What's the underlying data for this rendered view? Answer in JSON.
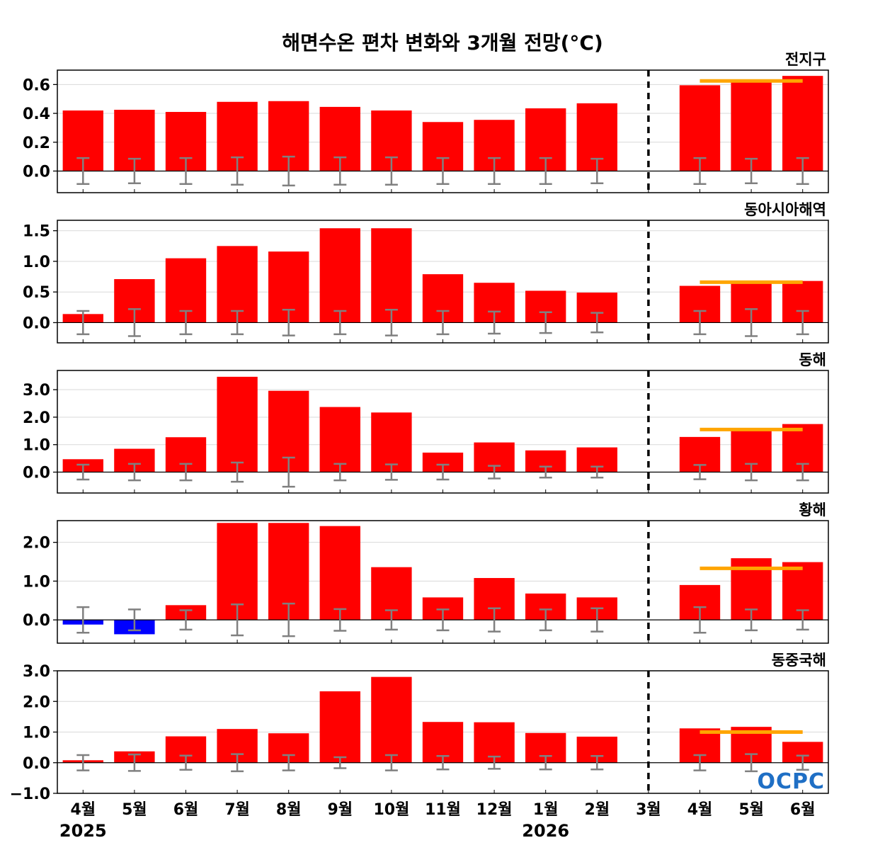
{
  "title": "해면수온 편차 변화와 3개월 전망(°C)",
  "logo_text": "OCPC",
  "colors": {
    "positive_bar": "#ff0000",
    "negative_bar": "#0000ff",
    "forecast_line": "#ffa500",
    "error_bar": "#808080",
    "grid": "#d9d9d9",
    "logo": "#1f6fc5"
  },
  "x_tick_labels": [
    "4월",
    "5월",
    "6월",
    "7월",
    "8월",
    "9월",
    "10월",
    "11월",
    "12월",
    "1월",
    "2월",
    "3월",
    "4월",
    "5월",
    "6월"
  ],
  "year_labels": [
    {
      "label": "2025",
      "category_index": 0
    },
    {
      "label": "2026",
      "category_index": 9
    }
  ],
  "divider_category_index": 11,
  "chart_data": [
    {
      "type": "bar",
      "title": "전지구",
      "categories": [
        "4월",
        "5월",
        "6월",
        "7월",
        "8월",
        "9월",
        "10월",
        "11월",
        "12월",
        "1월",
        "2월",
        "3월",
        "4월",
        "5월",
        "6월"
      ],
      "values": [
        0.42,
        0.425,
        0.41,
        0.48,
        0.485,
        0.445,
        0.42,
        0.34,
        0.355,
        0.435,
        0.47,
        0.0,
        0.595,
        0.615,
        0.66
      ],
      "error_bars": [
        0.09,
        0.085,
        0.09,
        0.095,
        0.1,
        0.095,
        0.095,
        0.09,
        0.09,
        0.09,
        0.085,
        null,
        0.09,
        0.085,
        0.09
      ],
      "forecast_mean": {
        "value": 0.625,
        "from_category_index": 12,
        "to_category_index": 14
      },
      "ylim": [
        -0.15,
        0.7
      ],
      "yticks": [
        0.0,
        0.2,
        0.4,
        0.6
      ],
      "ytick_labels": [
        "0.0",
        "0.2",
        "0.4",
        "0.6"
      ],
      "grid": true
    },
    {
      "type": "bar",
      "title": "동아시아해역",
      "categories": [
        "4월",
        "5월",
        "6월",
        "7월",
        "8월",
        "9월",
        "10월",
        "11월",
        "12월",
        "1월",
        "2월",
        "3월",
        "4월",
        "5월",
        "6월"
      ],
      "values": [
        0.14,
        0.71,
        1.05,
        1.25,
        1.16,
        1.54,
        1.54,
        0.79,
        0.65,
        0.52,
        0.49,
        0.0,
        0.6,
        0.68,
        0.68
      ],
      "error_bars": [
        0.19,
        0.22,
        0.19,
        0.19,
        0.21,
        0.19,
        0.21,
        0.19,
        0.18,
        0.17,
        0.16,
        null,
        0.19,
        0.22,
        0.19
      ],
      "forecast_mean": {
        "value": 0.66,
        "from_category_index": 12,
        "to_category_index": 14
      },
      "ylim": [
        -0.33,
        1.67
      ],
      "yticks": [
        0.0,
        0.5,
        1.0,
        1.5
      ],
      "ytick_labels": [
        "0.0",
        "0.5",
        "1.0",
        "1.5"
      ],
      "grid": true
    },
    {
      "type": "bar",
      "title": "동해",
      "categories": [
        "4월",
        "5월",
        "6월",
        "7월",
        "8월",
        "9월",
        "10월",
        "11월",
        "12월",
        "1월",
        "2월",
        "3월",
        "4월",
        "5월",
        "6월"
      ],
      "values": [
        0.47,
        0.85,
        1.27,
        3.47,
        2.96,
        2.37,
        2.17,
        0.71,
        1.08,
        0.79,
        0.9,
        0.0,
        1.28,
        1.55,
        1.75
      ],
      "error_bars": [
        0.27,
        0.3,
        0.3,
        0.35,
        0.53,
        0.3,
        0.28,
        0.27,
        0.23,
        0.2,
        0.2,
        null,
        0.26,
        0.3,
        0.3
      ],
      "forecast_mean": {
        "value": 1.55,
        "from_category_index": 12,
        "to_category_index": 14
      },
      "ylim": [
        -0.76,
        3.7
      ],
      "yticks": [
        0.0,
        1.0,
        2.0,
        3.0
      ],
      "ytick_labels": [
        "0.0",
        "1.0",
        "2.0",
        "3.0"
      ],
      "grid": true
    },
    {
      "type": "bar",
      "title": "황해",
      "categories": [
        "4월",
        "5월",
        "6월",
        "7월",
        "8월",
        "9월",
        "10월",
        "11월",
        "12월",
        "1월",
        "2월",
        "3월",
        "4월",
        "5월",
        "6월"
      ],
      "values": [
        -0.12,
        -0.37,
        0.38,
        2.5,
        2.5,
        2.42,
        1.36,
        0.58,
        1.08,
        0.68,
        0.58,
        0.0,
        0.9,
        1.59,
        1.49
      ],
      "error_bars": [
        0.33,
        0.27,
        0.25,
        0.4,
        0.42,
        0.28,
        0.25,
        0.27,
        0.3,
        0.27,
        0.3,
        null,
        0.33,
        0.27,
        0.25
      ],
      "forecast_mean": {
        "value": 1.33,
        "from_category_index": 12,
        "to_category_index": 14
      },
      "ylim": [
        -0.6,
        2.56
      ],
      "yticks": [
        0.0,
        1.0,
        2.0
      ],
      "ytick_labels": [
        "0.0",
        "1.0",
        "2.0"
      ],
      "grid": true
    },
    {
      "type": "bar",
      "title": "동중국해",
      "categories": [
        "4월",
        "5월",
        "6월",
        "7월",
        "8월",
        "9월",
        "10월",
        "11월",
        "12월",
        "1월",
        "2월",
        "3월",
        "4월",
        "5월",
        "6월"
      ],
      "values": [
        0.08,
        0.37,
        0.86,
        1.1,
        0.96,
        2.33,
        2.8,
        1.33,
        1.32,
        0.97,
        0.85,
        0.0,
        1.12,
        1.17,
        0.68
      ],
      "error_bars": [
        0.25,
        0.27,
        0.23,
        0.28,
        0.25,
        0.18,
        0.25,
        0.22,
        0.2,
        0.22,
        0.22,
        null,
        0.25,
        0.28,
        0.23
      ],
      "forecast_mean": {
        "value": 1.0,
        "from_category_index": 12,
        "to_category_index": 14
      },
      "ylim": [
        -1.0,
        3.0
      ],
      "yticks": [
        -1.0,
        0.0,
        1.0,
        2.0,
        3.0
      ],
      "ytick_labels": [
        "−1.0",
        "0.0",
        "1.0",
        "2.0",
        "3.0"
      ],
      "grid": true
    }
  ]
}
